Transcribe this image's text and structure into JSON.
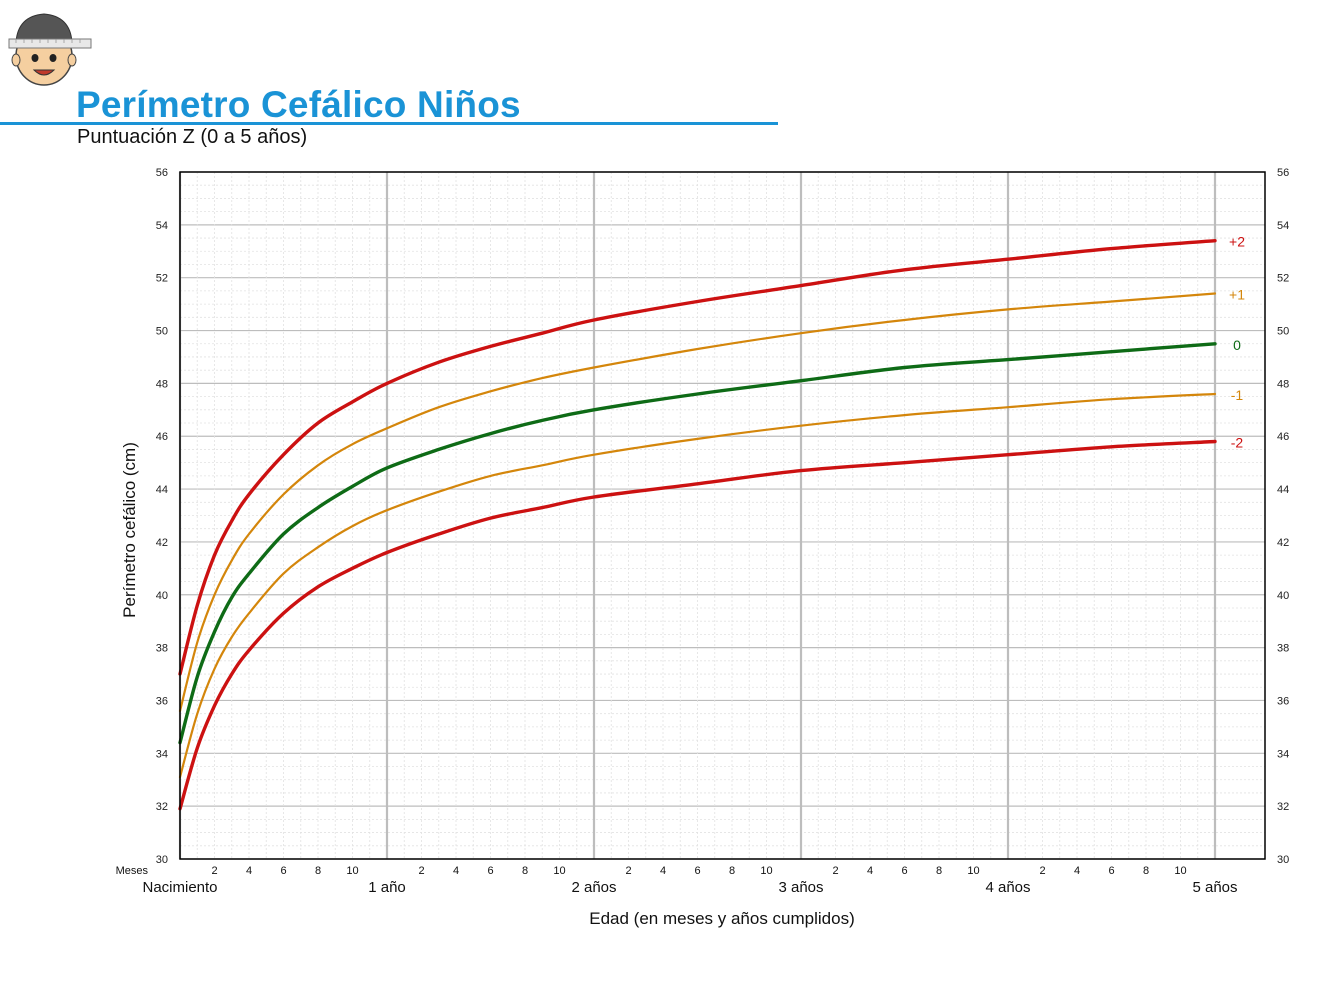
{
  "header": {
    "title": "Perímetro Cefálico Niños",
    "subtitle": "Puntuación Z (0 a 5 años)",
    "accent_color": "#1a93d6",
    "logo_icon": "baby-head-measuring-tape-icon"
  },
  "chart_data": {
    "type": "line",
    "title": "Perímetro Cefálico Niños",
    "subtitle": "Puntuación Z (0 a 5 años)",
    "xlabel": "Edad (en meses y años cumplidos)",
    "ylabel": "Perímetro cefálico (cm)",
    "x_unit": "months",
    "xlim": [
      0,
      60
    ],
    "ylim": [
      30,
      56
    ],
    "y_ticks": [
      30,
      32,
      34,
      36,
      38,
      40,
      42,
      44,
      46,
      48,
      50,
      52,
      54,
      56
    ],
    "x_prefix_label": "Meses",
    "x_month_ticks": [
      2,
      4,
      6,
      8,
      10
    ],
    "x_year_labels": [
      {
        "months": 0,
        "label": "Nacimiento"
      },
      {
        "months": 12,
        "label": "1 año"
      },
      {
        "months": 24,
        "label": "2 años"
      },
      {
        "months": 36,
        "label": "3 años"
      },
      {
        "months": 48,
        "label": "4 años"
      },
      {
        "months": 60,
        "label": "5 años"
      }
    ],
    "grid": true,
    "legend": "labels at right end of each curve",
    "x": [
      0,
      1,
      2,
      3,
      4,
      6,
      8,
      10,
      12,
      15,
      18,
      21,
      24,
      30,
      36,
      42,
      48,
      54,
      60
    ],
    "series": [
      {
        "name": "+2",
        "color": "#cc1111",
        "values": [
          37.0,
          39.6,
          41.5,
          42.8,
          43.8,
          45.3,
          46.5,
          47.3,
          48.0,
          48.8,
          49.4,
          49.9,
          50.4,
          51.1,
          51.7,
          52.3,
          52.7,
          53.1,
          53.4
        ]
      },
      {
        "name": "+1",
        "color": "#d4860b",
        "values": [
          35.6,
          38.2,
          40.0,
          41.3,
          42.3,
          43.8,
          44.9,
          45.7,
          46.3,
          47.1,
          47.7,
          48.2,
          48.6,
          49.3,
          49.9,
          50.4,
          50.8,
          51.1,
          51.4
        ]
      },
      {
        "name": "0",
        "color": "#0e6b16",
        "values": [
          34.4,
          36.9,
          38.6,
          39.9,
          40.8,
          42.3,
          43.3,
          44.1,
          44.8,
          45.5,
          46.1,
          46.6,
          47.0,
          47.6,
          48.1,
          48.6,
          48.9,
          49.2,
          49.5
        ]
      },
      {
        "name": "-1",
        "color": "#d4860b",
        "values": [
          33.1,
          35.5,
          37.2,
          38.4,
          39.3,
          40.8,
          41.8,
          42.6,
          43.2,
          43.9,
          44.5,
          44.9,
          45.3,
          45.9,
          46.4,
          46.8,
          47.1,
          47.4,
          47.6
        ]
      },
      {
        "name": "-2",
        "color": "#cc1111",
        "values": [
          31.9,
          34.2,
          35.8,
          37.0,
          37.9,
          39.3,
          40.3,
          41.0,
          41.6,
          42.3,
          42.9,
          43.3,
          43.7,
          44.2,
          44.7,
          45.0,
          45.3,
          45.6,
          45.8
        ]
      }
    ]
  }
}
